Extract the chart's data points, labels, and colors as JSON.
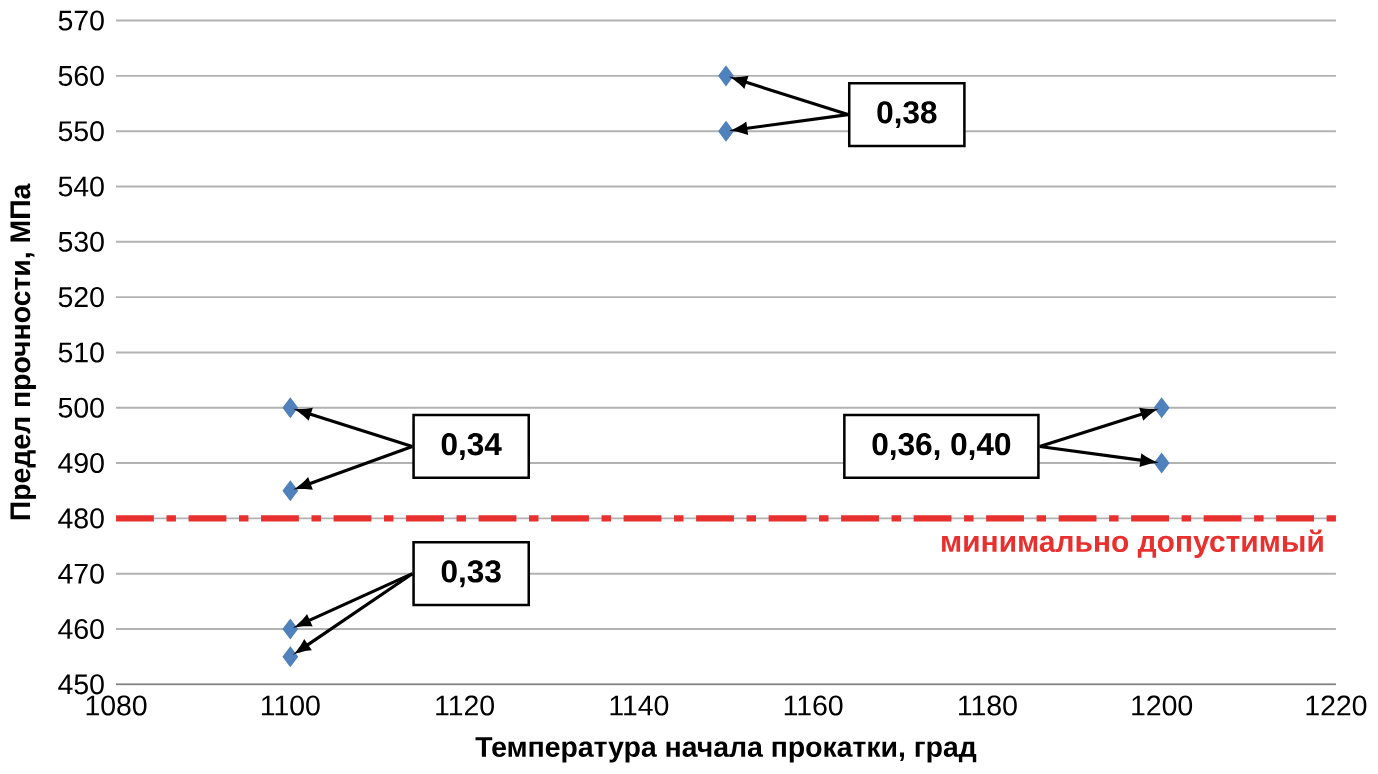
{
  "chart_data": {
    "type": "scatter",
    "xlabel": "Температура начала прокатки, град",
    "ylabel": "Предел прочности, МПа",
    "x": [
      1100,
      1100,
      1100,
      1100,
      1150,
      1150,
      1200,
      1200
    ],
    "series": [
      {
        "color": "#4f81bd",
        "values": [
          500,
          485,
          460,
          455,
          560,
          550,
          500,
          490
        ]
      }
    ],
    "marker": "diamond",
    "grid": "y",
    "xlim": [
      1080,
      1220
    ],
    "xticks": [
      1080,
      1100,
      1120,
      1140,
      1160,
      1180,
      1200,
      1220
    ],
    "ylim": [
      450,
      570
    ],
    "yticks": [
      450,
      460,
      470,
      480,
      490,
      500,
      510,
      520,
      530,
      540,
      550,
      560,
      570
    ],
    "ref_lines": [
      {
        "axis": "y",
        "value": 480,
        "label": "минимально допустимый",
        "color": "#e8312f",
        "line_style": "dashdot"
      }
    ],
    "annotations": [
      "0,38",
      "0,34",
      "0,33",
      "0,36, 0,40"
    ]
  }
}
